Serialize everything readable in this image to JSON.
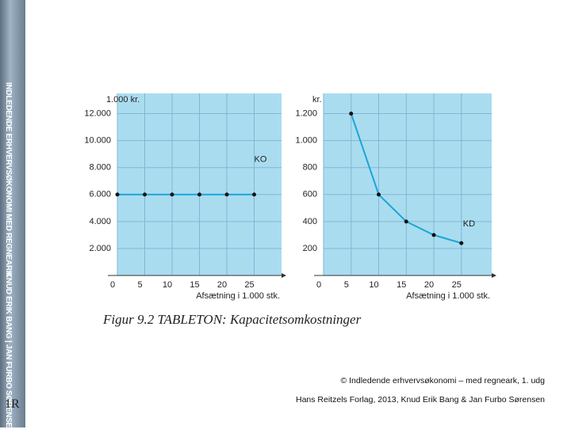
{
  "sidebar_title": "INDLEDENDE ERHVERVSØKONOMI MED REGNEARK",
  "sidebar_authors": "KNUD ERIK BANG | JAN FURBO SØRENSEN",
  "page_number": "1R",
  "figure_caption": "Figur 9.2 TABLETON: Kapacitetsomkostninger",
  "copyright_lines": [
    "© Indledende erhvervsøkonomi – med regneark, 1. udg",
    "Hans Reitzels Forlag, 2013, Knud Erik Bang & Jan Furbo Sørensen"
  ],
  "chart_data": [
    {
      "type": "line",
      "y_label": "1.000 kr.",
      "x_label": "Afsætning i 1.000 stk.",
      "annotation": "KO",
      "x": [
        0,
        5,
        10,
        15,
        20,
        25
      ],
      "series": [
        {
          "name": "KO",
          "color": "#1aa6d6",
          "values": [
            6000,
            6000,
            6000,
            6000,
            6000,
            6000
          ]
        }
      ],
      "xlim": [
        0,
        30
      ],
      "ylim": [
        0,
        13500
      ],
      "xticks": [
        0,
        5,
        10,
        15,
        20,
        25
      ],
      "yticks": [
        {
          "value": 2000,
          "label": "2.000"
        },
        {
          "value": 4000,
          "label": "4.000"
        },
        {
          "value": 6000,
          "label": "6.000"
        },
        {
          "value": 8000,
          "label": "8.000"
        },
        {
          "value": 10000,
          "label": "10.000"
        },
        {
          "value": 12000,
          "label": "12.000"
        }
      ],
      "grid": true,
      "background": "#aadcf0"
    },
    {
      "type": "line",
      "y_label": "kr.",
      "x_label": "Afsætning i 1.000 stk.",
      "annotation": "KD",
      "x": [
        5,
        10,
        15,
        20,
        25
      ],
      "series": [
        {
          "name": "KD",
          "color": "#1aa6d6",
          "values": [
            1200,
            600,
            400,
            300,
            240
          ]
        }
      ],
      "xlim": [
        0,
        30.5
      ],
      "ylim": [
        0,
        1350
      ],
      "xticks": [
        0,
        5,
        10,
        15,
        20,
        25
      ],
      "yticks": [
        200,
        400,
        600,
        800,
        {
          "value": 1000,
          "label": "1.000"
        },
        {
          "value": 1200,
          "label": "1.200"
        }
      ],
      "grid": true,
      "background": "#aadcf0"
    }
  ]
}
